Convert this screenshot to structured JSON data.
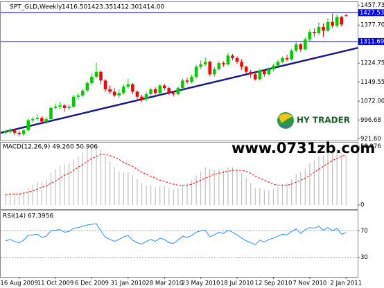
{
  "chart_data": [
    {
      "type": "candlestick",
      "title": "SPT_GLD,Weekly",
      "header_values": [
        "1416.50",
        "1423.35",
        "1412.30",
        "1414.00"
      ],
      "categories": [
        null,
        null,
        null,
        "16 Aug 2009",
        null,
        null,
        null,
        null,
        null,
        null,
        null,
        "11 Oct 2009",
        null,
        null,
        null,
        null,
        null,
        null,
        null,
        "6 Dec 2009",
        null,
        null,
        null,
        null,
        null,
        null,
        null,
        "31 Jan 2010",
        null,
        null,
        null,
        null,
        null,
        null,
        null,
        "28 Mar 2010",
        null,
        null,
        null,
        null,
        null,
        null,
        null,
        "23 May 2010",
        null,
        null,
        null,
        null,
        null,
        null,
        null,
        "18 Jul 2010",
        null,
        null,
        null,
        null,
        null,
        null,
        null,
        "12 Sep 2010",
        null,
        null,
        null,
        null,
        null,
        null,
        null,
        "7 Nov 2010",
        null,
        null,
        null,
        null,
        null,
        null,
        null,
        "2 Jan 2011"
      ],
      "open": [
        945,
        950,
        955,
        945,
        940,
        955,
        995,
        1000,
        1005,
        990,
        1000,
        1045,
        1050,
        1055,
        1045,
        1050,
        1090,
        1095,
        1115,
        1145,
        1170,
        1190,
        1155,
        1120,
        1110,
        1095,
        1105,
        1130,
        1140,
        1110,
        1090,
        1080,
        1100,
        1120,
        1105,
        1135,
        1125,
        1105,
        1100,
        1125,
        1155,
        1150,
        1170,
        1210,
        1220,
        1230,
        1180,
        1200,
        1225,
        1220,
        1255,
        1245,
        1230,
        1210,
        1190,
        1180,
        1160,
        1195,
        1180,
        1200,
        1215,
        1230,
        1245,
        1240,
        1275,
        1300,
        1280,
        1320,
        1350,
        1345,
        1370,
        1355,
        1390,
        1375,
        1410,
        1416.5
      ],
      "high": [
        958,
        963,
        962,
        953,
        960,
        1003,
        1010,
        1020,
        1012,
        1008,
        1052,
        1062,
        1070,
        1060,
        1058,
        1098,
        1105,
        1120,
        1152,
        1182,
        1226,
        1195,
        1160,
        1135,
        1125,
        1120,
        1140,
        1162,
        1145,
        1115,
        1098,
        1110,
        1127,
        1128,
        1140,
        1142,
        1130,
        1114,
        1132,
        1162,
        1166,
        1178,
        1218,
        1236,
        1248,
        1235,
        1210,
        1232,
        1232,
        1265,
        1262,
        1252,
        1240,
        1215,
        1198,
        1188,
        1202,
        1200,
        1208,
        1222,
        1238,
        1252,
        1258,
        1282,
        1310,
        1305,
        1328,
        1360,
        1365,
        1388,
        1385,
        1405,
        1424,
        1420,
        1415,
        1423.35
      ],
      "low": [
        938,
        944,
        936,
        931,
        932,
        950,
        985,
        992,
        982,
        980,
        995,
        1038,
        1040,
        1030,
        1035,
        1045,
        1078,
        1088,
        1110,
        1138,
        1165,
        1140,
        1110,
        1100,
        1088,
        1085,
        1098,
        1122,
        1100,
        1075,
        1070,
        1072,
        1094,
        1098,
        1100,
        1116,
        1097,
        1092,
        1095,
        1118,
        1140,
        1143,
        1162,
        1200,
        1212,
        1172,
        1170,
        1195,
        1210,
        1215,
        1236,
        1222,
        1198,
        1180,
        1165,
        1155,
        1157,
        1170,
        1175,
        1193,
        1210,
        1225,
        1232,
        1236,
        1268,
        1270,
        1276,
        1312,
        1330,
        1338,
        1330,
        1350,
        1365,
        1368,
        1372,
        1412.3
      ],
      "close": [
        950,
        955,
        945,
        940,
        955,
        995,
        1000,
        1005,
        990,
        1000,
        1045,
        1050,
        1055,
        1045,
        1050,
        1090,
        1095,
        1115,
        1145,
        1170,
        1190,
        1155,
        1120,
        1110,
        1095,
        1105,
        1130,
        1140,
        1110,
        1090,
        1080,
        1100,
        1120,
        1105,
        1135,
        1125,
        1105,
        1100,
        1125,
        1155,
        1150,
        1170,
        1210,
        1220,
        1230,
        1180,
        1200,
        1225,
        1220,
        1255,
        1245,
        1230,
        1210,
        1190,
        1180,
        1160,
        1195,
        1180,
        1200,
        1215,
        1230,
        1245,
        1240,
        1275,
        1300,
        1280,
        1320,
        1350,
        1345,
        1370,
        1355,
        1390,
        1375,
        1410,
        1380,
        1414
      ],
      "bull_color": "#00cc00",
      "bear_color": "#ff0000",
      "ylim": [
        914,
        1470
      ],
      "yticks": [
        1457.73,
        {
          "value": 1377.7,
          "label": "1377.70"
        },
        1224.75,
        1149.55,
        {
          "value": 1072,
          "label": "1072.00"
        },
        996.68,
        {
          "value": 921.6,
          "label": "921.60"
        }
      ],
      "levels": [
        1427.53,
        1311.69
      ],
      "level_color": "#0000ff",
      "trendline": {
        "values": [
          945,
          1286
        ],
        "color": "#1a1a8c"
      },
      "watermark": "www.0731zb.com",
      "logo": "HY TRADER"
    },
    {
      "type": "macd",
      "title": "MACD(12,26,9) 49.260 50.906",
      "values": [
        12,
        13,
        12,
        11,
        13,
        17,
        20,
        23,
        23,
        25,
        32,
        36,
        40,
        41,
        42,
        46,
        49,
        53,
        57,
        58,
        59,
        56,
        50,
        44,
        38,
        34,
        33,
        33,
        30,
        26,
        22,
        20,
        20,
        18,
        19,
        19,
        17,
        16,
        17,
        20,
        22,
        25,
        30,
        34,
        38,
        36,
        35,
        36,
        35,
        38,
        38,
        36,
        32,
        27,
        22,
        17,
        17,
        15,
        15,
        16,
        18,
        21,
        22,
        26,
        31,
        33,
        37,
        42,
        45,
        49,
        50,
        53,
        53,
        56,
        52,
        49.26
      ],
      "signal": [
        10,
        11,
        11,
        11,
        12,
        13,
        14,
        16,
        18,
        19,
        22,
        24,
        27,
        30,
        32,
        35,
        38,
        41,
        44,
        47,
        49,
        51,
        51,
        50,
        48,
        46,
        43,
        41,
        39,
        36,
        33,
        31,
        29,
        27,
        25,
        24,
        22,
        21,
        20,
        20,
        20,
        21,
        23,
        25,
        27,
        29,
        31,
        32,
        33,
        34,
        35,
        35,
        35,
        34,
        32,
        29,
        27,
        25,
        23,
        21,
        20,
        20,
        20,
        21,
        23,
        25,
        27,
        30,
        33,
        36,
        39,
        42,
        45,
        47,
        49,
        50.906
      ],
      "hist_color": "#c0c0c0",
      "signal_color": "#ff0000",
      "ylim": [
        -4.2,
        63
      ],
      "yticks": [
        58.976,
        0
      ]
    },
    {
      "type": "line",
      "title": "RSI(14) 67.3956",
      "values": [
        55,
        57,
        54,
        52,
        56,
        63,
        64,
        65,
        60,
        62,
        70,
        71,
        72,
        68,
        69,
        74,
        75,
        77,
        79,
        80,
        81,
        70,
        60,
        57,
        54,
        57,
        61,
        63,
        56,
        52,
        50,
        54,
        57,
        54,
        59,
        57,
        52,
        51,
        56,
        62,
        60,
        63,
        68,
        70,
        71,
        61,
        64,
        68,
        66,
        71,
        68,
        64,
        59,
        55,
        52,
        49,
        56,
        53,
        57,
        59,
        62,
        65,
        64,
        69,
        73,
        66,
        72,
        75,
        74,
        77,
        71,
        75,
        70,
        74,
        65,
        67.3956
      ],
      "color": "#1e90ff",
      "ylim": [
        0,
        100
      ],
      "yticks": [
        70,
        30
      ]
    }
  ]
}
